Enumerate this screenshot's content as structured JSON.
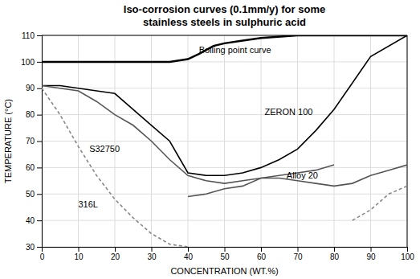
{
  "chart_data": {
    "type": "line",
    "title": "Iso-corrosion curves (0.1mm/y) for some\nstainless steels in sulphuric acid",
    "x_label": "CONCENTRATION (WT.%)",
    "y_label": "TEMPERATURE (°C)",
    "xlim": [
      0,
      100
    ],
    "ylim": [
      30,
      110
    ],
    "xticks": [
      0,
      10,
      20,
      30,
      40,
      50,
      60,
      70,
      80,
      90,
      100
    ],
    "yticks": [
      30,
      40,
      50,
      60,
      70,
      80,
      90,
      100,
      110
    ],
    "grid": true,
    "series": [
      {
        "color": "#000000",
        "line_style": "solid",
        "x": [
          0,
          10,
          20,
          30,
          35,
          40,
          43,
          47,
          50,
          55,
          60,
          70,
          80,
          90,
          100
        ],
        "values": [
          100,
          100,
          100,
          100,
          100,
          101,
          103,
          106,
          107,
          108,
          109,
          110,
          110,
          110,
          110
        ]
      },
      {
        "color": "#000000",
        "line_style": "solid",
        "x": [
          0,
          5,
          10,
          15,
          20,
          25,
          30,
          35,
          40,
          45,
          50,
          55,
          60,
          65,
          70,
          75,
          80,
          85,
          90,
          100
        ],
        "values": [
          91,
          91,
          90,
          89,
          88,
          82,
          76,
          70,
          58,
          57,
          57,
          58,
          60,
          63,
          67,
          74,
          82,
          92,
          102,
          110
        ]
      },
      {
        "color": "#555555",
        "line_style": "solid",
        "x": [
          0,
          5,
          10,
          15,
          20,
          25,
          30,
          35,
          40,
          45,
          50,
          55,
          60,
          65,
          70,
          75,
          80
        ],
        "values": [
          91,
          90,
          89,
          85,
          80,
          76,
          70,
          63,
          57,
          55,
          54,
          55,
          56,
          57,
          58,
          59,
          61
        ]
      },
      {
        "color": "#555555",
        "line_style": "solid",
        "x": [
          40,
          45,
          50,
          55,
          60,
          65,
          70,
          75,
          80,
          85,
          90,
          95,
          100
        ],
        "values": [
          49,
          50,
          52,
          53,
          56,
          56,
          55,
          54,
          53,
          54,
          57,
          59,
          61
        ]
      },
      {
        "color": "#888888",
        "line_style": "dashed",
        "x": [
          0,
          5,
          10,
          15,
          20,
          25,
          30,
          35,
          40
        ],
        "values": [
          90,
          80,
          68,
          57,
          48,
          41,
          35,
          31,
          30
        ]
      },
      {
        "color": "#888888",
        "line_style": "dashed",
        "x": [
          85,
          90,
          95,
          100
        ],
        "values": [
          40,
          44,
          50,
          53
        ]
      }
    ],
    "annotations": [
      {
        "text": "Boiling point curve",
        "x": 43,
        "y": 104.5
      },
      {
        "text": "ZERON 100",
        "x": 61,
        "y": 81
      },
      {
        "text": "S32750",
        "x": 13,
        "y": 67
      },
      {
        "text": "Alloy 20",
        "x": 67,
        "y": 57
      },
      {
        "text": "316L",
        "x": 10,
        "y": 46
      }
    ]
  }
}
